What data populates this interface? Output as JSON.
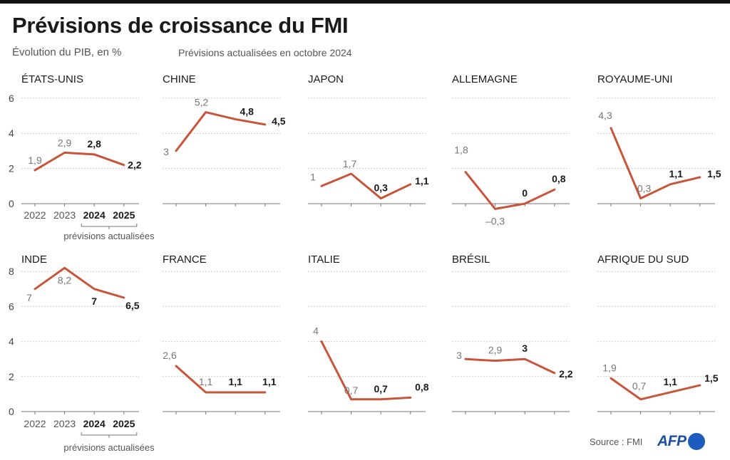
{
  "header": {
    "title": "Prévisions de croissance du FMI",
    "subtitle": "Évolution du PIB, en %",
    "note": "Prévisions actualisées en octobre 2024"
  },
  "footer": {
    "source": "Source : FMI",
    "logo": "AFP"
  },
  "colors": {
    "line": "#c8553a",
    "grid": "#bdbdbd",
    "axis": "#555555"
  },
  "chart_data": [
    {
      "type": "line",
      "row": 1,
      "years": [
        "2022",
        "2023",
        "2024",
        "2025"
      ],
      "ylim": [
        0,
        6
      ],
      "yticks": [
        0,
        2,
        4,
        6
      ],
      "bracket_label": "prévisions actualisées",
      "panels": [
        {
          "title": "ÉTATS-UNIS",
          "values": [
            1.9,
            2.9,
            2.8,
            2.2
          ],
          "labels": [
            "1,9",
            "2,9",
            "2,8",
            "2,2"
          ]
        },
        {
          "title": "CHINE",
          "values": [
            3,
            5.2,
            4.8,
            4.5
          ],
          "labels": [
            "3",
            "5,2",
            "4,8",
            "4,5"
          ]
        },
        {
          "title": "JAPON",
          "values": [
            1,
            1.7,
            0.3,
            1.1
          ],
          "labels": [
            "1",
            "1,7",
            "0,3",
            "1,1"
          ]
        },
        {
          "title": "ALLEMAGNE",
          "values": [
            1.8,
            -0.3,
            0,
            0.8
          ],
          "labels": [
            "1,8",
            "–0,3",
            "0",
            "0,8"
          ]
        },
        {
          "title": "ROYAUME-UNI",
          "values": [
            4.3,
            0.3,
            1.1,
            1.5
          ],
          "labels": [
            "4,3",
            "0,3",
            "1,1",
            "1,5"
          ]
        }
      ]
    },
    {
      "type": "line",
      "row": 2,
      "years": [
        "2022",
        "2023",
        "2024",
        "2025"
      ],
      "ylim": [
        0,
        8
      ],
      "yticks": [
        0,
        2,
        4,
        6,
        8
      ],
      "bracket_label": "prévisions actualisées",
      "panels": [
        {
          "title": "INDE",
          "values": [
            7,
            8.2,
            7,
            6.5
          ],
          "labels": [
            "7",
            "8,2",
            "7",
            "6,5"
          ]
        },
        {
          "title": "FRANCE",
          "values": [
            2.6,
            1.1,
            1.1,
            1.1
          ],
          "labels": [
            "2,6",
            "1,1",
            "1,1",
            "1,1"
          ]
        },
        {
          "title": "ITALIE",
          "values": [
            4,
            0.7,
            0.7,
            0.8
          ],
          "labels": [
            "4",
            "0,7",
            "0,7",
            "0,8"
          ]
        },
        {
          "title": "BRÉSIL",
          "values": [
            3,
            2.9,
            3,
            2.2
          ],
          "labels": [
            "3",
            "2,9",
            "3",
            "2,2"
          ]
        },
        {
          "title": "AFRIQUE DU SUD",
          "values": [
            1.9,
            0.7,
            1.1,
            1.5
          ],
          "labels": [
            "1,9",
            "0,7",
            "1,1",
            "1,5"
          ]
        }
      ]
    }
  ]
}
